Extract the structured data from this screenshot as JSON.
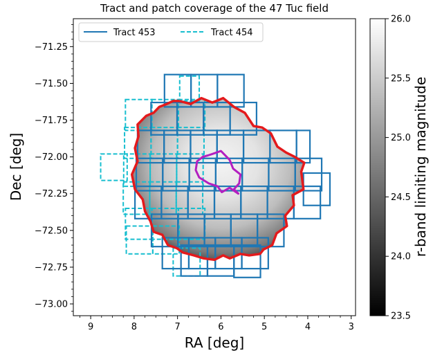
{
  "chart_data": {
    "type": "map",
    "title": "Tract and patch coverage of the 47 Tuc field",
    "xlabel": "RA [deg]",
    "ylabel": "Dec [deg]",
    "xlim": [
      9.4,
      2.9
    ],
    "ylim": [
      -73.08,
      -71.06
    ],
    "x_ticks": [
      9,
      8,
      7,
      6,
      5,
      4,
      3
    ],
    "y_ticks": [
      -71.25,
      -71.5,
      -71.75,
      -72.0,
      -72.25,
      -72.5,
      -72.75,
      -73.0
    ],
    "x_tick_labels": [
      "9",
      "8",
      "7",
      "6",
      "5",
      "4",
      "3"
    ],
    "y_tick_labels": [
      "−71.25",
      "−71.50",
      "−71.75",
      "−72.00",
      "−72.25",
      "−72.50",
      "−72.75",
      "−73.00"
    ],
    "legend": {
      "position": "top-left",
      "entries": [
        {
          "label": "Tract 453",
          "color": "#1f77b4",
          "style": "solid"
        },
        {
          "label": "Tract 454",
          "color": "#17becf",
          "style": "dashed"
        }
      ]
    },
    "colorbar": {
      "label": "r-band limiting magnitude",
      "range": [
        23.5,
        26.0
      ],
      "ticks": [
        23.5,
        24.0,
        24.5,
        25.0,
        25.5,
        26.0
      ],
      "tick_labels": [
        "23.5",
        "24.0",
        "24.5",
        "25.0",
        "25.5",
        "26.0"
      ],
      "colormap": "gray"
    },
    "outer_boundary_color": "#e41a1c",
    "inner_boundary_color": "#b31fc0",
    "tract_453_patches": [
      [
        7.3,
        6.69,
        -71.44,
        -71.66
      ],
      [
        6.69,
        6.08,
        -71.44,
        -71.66
      ],
      [
        6.08,
        5.47,
        -71.44,
        -71.66
      ],
      [
        7.61,
        7.01,
        -71.63,
        -71.85
      ],
      [
        7.01,
        6.4,
        -71.63,
        -71.85
      ],
      [
        6.4,
        5.79,
        -71.63,
        -71.85
      ],
      [
        5.79,
        5.18,
        -71.63,
        -71.85
      ],
      [
        7.92,
        7.31,
        -71.82,
        -72.04
      ],
      [
        7.31,
        6.7,
        -71.82,
        -72.04
      ],
      [
        6.7,
        6.09,
        -71.82,
        -72.04
      ],
      [
        6.09,
        5.48,
        -71.82,
        -72.04
      ],
      [
        5.48,
        4.87,
        -71.82,
        -72.04
      ],
      [
        4.87,
        4.26,
        -71.82,
        -72.04
      ],
      [
        4.26,
        3.95,
        -71.82,
        -72.04
      ],
      [
        7.95,
        7.34,
        -72.01,
        -72.23
      ],
      [
        7.34,
        6.73,
        -72.01,
        -72.23
      ],
      [
        6.73,
        6.12,
        -72.01,
        -72.23
      ],
      [
        6.12,
        5.51,
        -72.01,
        -72.23
      ],
      [
        5.51,
        4.9,
        -72.01,
        -72.23
      ],
      [
        4.9,
        4.29,
        -72.01,
        -72.23
      ],
      [
        4.29,
        3.68,
        -72.01,
        -72.23
      ],
      [
        7.98,
        7.37,
        -72.2,
        -72.42
      ],
      [
        7.37,
        6.76,
        -72.2,
        -72.42
      ],
      [
        6.76,
        6.15,
        -72.2,
        -72.42
      ],
      [
        6.15,
        5.54,
        -72.2,
        -72.42
      ],
      [
        5.54,
        4.93,
        -72.2,
        -72.42
      ],
      [
        4.93,
        4.32,
        -72.2,
        -72.42
      ],
      [
        4.32,
        3.71,
        -72.2,
        -72.42
      ],
      [
        4.1,
        3.49,
        -72.11,
        -72.33
      ],
      [
        7.6,
        6.99,
        -72.39,
        -72.61
      ],
      [
        6.99,
        6.38,
        -72.39,
        -72.61
      ],
      [
        6.38,
        5.77,
        -72.39,
        -72.61
      ],
      [
        5.77,
        5.16,
        -72.39,
        -72.61
      ],
      [
        5.16,
        4.55,
        -72.39,
        -72.61
      ],
      [
        7.35,
        6.74,
        -72.55,
        -72.76
      ],
      [
        6.74,
        6.13,
        -72.55,
        -72.76
      ],
      [
        6.13,
        5.52,
        -72.55,
        -72.76
      ],
      [
        5.52,
        4.91,
        -72.55,
        -72.76
      ],
      [
        6.92,
        6.31,
        -72.6,
        -72.81
      ],
      [
        6.31,
        5.7,
        -72.6,
        -72.81
      ],
      [
        5.7,
        5.09,
        -72.6,
        -72.82
      ]
    ],
    "tract_454_patches": [
      [
        8.2,
        7.59,
        -71.61,
        -71.82
      ],
      [
        7.59,
        6.98,
        -71.61,
        -71.82
      ],
      [
        6.98,
        6.37,
        -71.61,
        -71.82
      ],
      [
        8.22,
        7.61,
        -71.8,
        -72.01
      ],
      [
        7.61,
        7.0,
        -71.8,
        -72.01
      ],
      [
        7.0,
        6.39,
        -71.8,
        -72.01
      ],
      [
        8.77,
        8.16,
        -71.98,
        -72.16
      ],
      [
        8.24,
        7.63,
        -71.98,
        -72.2
      ],
      [
        7.63,
        7.02,
        -71.98,
        -72.2
      ],
      [
        7.02,
        6.41,
        -71.98,
        -72.2
      ],
      [
        8.25,
        7.64,
        -72.17,
        -72.39
      ],
      [
        7.64,
        7.03,
        -72.17,
        -72.39
      ],
      [
        7.03,
        6.42,
        -72.17,
        -72.39
      ],
      [
        8.2,
        7.59,
        -72.35,
        -72.56
      ],
      [
        7.59,
        6.98,
        -72.35,
        -72.56
      ],
      [
        6.98,
        6.37,
        -72.35,
        -72.56
      ],
      [
        8.18,
        7.57,
        -72.47,
        -72.66
      ],
      [
        7.57,
        6.96,
        -72.47,
        -72.66
      ],
      [
        6.95,
        6.5,
        -71.45,
        -71.62
      ],
      [
        7.1,
        6.48,
        -72.62,
        -72.81
      ]
    ],
    "outer_boundary": [
      [
        6.95,
        -71.62
      ],
      [
        6.7,
        -71.64
      ],
      [
        6.45,
        -71.6
      ],
      [
        6.2,
        -71.63
      ],
      [
        5.95,
        -71.6
      ],
      [
        5.7,
        -71.66
      ],
      [
        5.45,
        -71.7
      ],
      [
        5.25,
        -71.79
      ],
      [
        5.05,
        -71.8
      ],
      [
        4.85,
        -71.84
      ],
      [
        4.7,
        -71.93
      ],
      [
        4.5,
        -71.97
      ],
      [
        4.3,
        -72.0
      ],
      [
        4.08,
        -72.04
      ],
      [
        4.15,
        -72.1
      ],
      [
        4.1,
        -72.22
      ],
      [
        4.35,
        -72.26
      ],
      [
        4.32,
        -72.33
      ],
      [
        4.52,
        -72.4
      ],
      [
        4.48,
        -72.47
      ],
      [
        4.72,
        -72.52
      ],
      [
        4.82,
        -72.6
      ],
      [
        5.02,
        -72.63
      ],
      [
        5.1,
        -72.66
      ],
      [
        5.35,
        -72.67
      ],
      [
        5.55,
        -72.66
      ],
      [
        5.8,
        -72.69
      ],
      [
        5.95,
        -72.67
      ],
      [
        6.15,
        -72.7
      ],
      [
        6.4,
        -72.69
      ],
      [
        6.62,
        -72.67
      ],
      [
        6.88,
        -72.65
      ],
      [
        7.02,
        -72.62
      ],
      [
        7.22,
        -72.6
      ],
      [
        7.35,
        -72.53
      ],
      [
        7.55,
        -72.51
      ],
      [
        7.62,
        -72.44
      ],
      [
        7.75,
        -72.37
      ],
      [
        7.8,
        -72.29
      ],
      [
        7.98,
        -72.22
      ],
      [
        8.05,
        -72.12
      ],
      [
        7.92,
        -72.03
      ],
      [
        7.98,
        -71.94
      ],
      [
        7.9,
        -71.86
      ],
      [
        7.92,
        -71.78
      ],
      [
        7.72,
        -71.72
      ],
      [
        7.55,
        -71.7
      ],
      [
        7.42,
        -71.66
      ],
      [
        7.25,
        -71.64
      ],
      [
        7.1,
        -71.62
      ],
      [
        6.95,
        -71.62
      ]
    ],
    "inner_boundary": [
      [
        6.2,
        -71.98
      ],
      [
        6.0,
        -71.96
      ],
      [
        5.8,
        -72.02
      ],
      [
        5.72,
        -72.08
      ],
      [
        5.55,
        -72.12
      ],
      [
        5.58,
        -72.18
      ],
      [
        5.7,
        -72.22
      ],
      [
        5.6,
        -72.25
      ],
      [
        5.8,
        -72.21
      ],
      [
        5.98,
        -72.24
      ],
      [
        6.08,
        -72.2
      ],
      [
        6.28,
        -72.18
      ],
      [
        6.5,
        -72.14
      ],
      [
        6.58,
        -72.09
      ],
      [
        6.55,
        -72.03
      ],
      [
        6.42,
        -72.0
      ],
      [
        6.3,
        -71.99
      ],
      [
        6.2,
        -71.98
      ]
    ]
  }
}
